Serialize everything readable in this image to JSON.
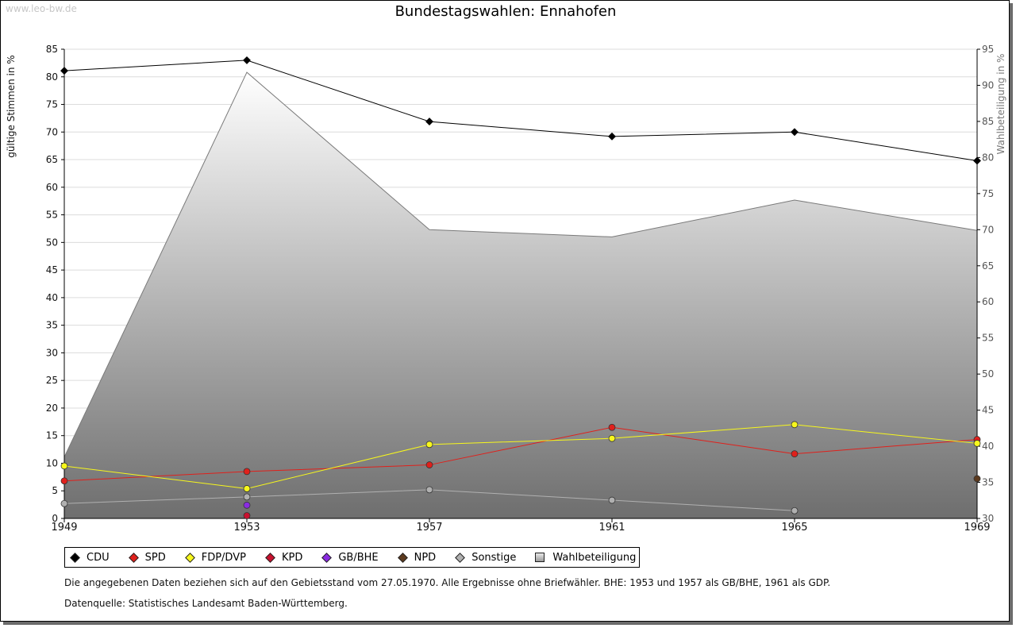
{
  "watermark": "www.leo-bw.de",
  "notes": {
    "data_basis": "Die angegebenen Daten beziehen sich auf den Gebietsstand vom 27.05.1970. Alle Ergebnisse ohne Briefwähler. BHE: 1953 und 1957 als GB/BHE, 1961 als GDP.",
    "source": "Datenquelle: Statistisches Landesamt Baden-Württemberg."
  },
  "chart_data": {
    "type": "line",
    "title": "Bundestagswahlen: Ennahofen",
    "xlabel": "",
    "ylabel": "gültige Stimmen in %",
    "y2label": "Wahlbeteiligung in %",
    "categories": [
      "1949",
      "1953",
      "1957",
      "1961",
      "1965",
      "1969"
    ],
    "ylim": [
      0,
      85
    ],
    "yticks": [
      0,
      5,
      10,
      15,
      20,
      25,
      30,
      35,
      40,
      45,
      50,
      55,
      60,
      65,
      70,
      75,
      80,
      85
    ],
    "y2lim": [
      30,
      95
    ],
    "y2ticks": [
      30,
      35,
      40,
      45,
      50,
      55,
      60,
      65,
      70,
      75,
      80,
      85,
      90,
      95
    ],
    "grid": true,
    "legend_position": "bottom",
    "series": [
      {
        "name": "CDU",
        "color": "#000000",
        "values": [
          81.1,
          83.0,
          71.9,
          69.2,
          70.0,
          64.8
        ]
      },
      {
        "name": "SPD",
        "color": "#e0201b",
        "values": [
          6.8,
          8.5,
          9.7,
          16.5,
          11.7,
          14.3
        ]
      },
      {
        "name": "FDP/DVP",
        "color": "#f7f71c",
        "values": [
          9.5,
          5.4,
          13.4,
          14.5,
          17.0,
          13.6
        ]
      },
      {
        "name": "KPD",
        "color": "#c8102e",
        "values": [
          null,
          0.5,
          null,
          null,
          null,
          null
        ]
      },
      {
        "name": "GB/BHE",
        "color": "#8a2be2",
        "values": [
          null,
          2.4,
          null,
          null,
          null,
          null
        ]
      },
      {
        "name": "NPD",
        "color": "#5c3a1e",
        "values": [
          null,
          null,
          null,
          null,
          null,
          7.2
        ]
      },
      {
        "name": "Sonstige",
        "color": "#b0b0b0",
        "values": [
          2.7,
          3.9,
          5.2,
          3.3,
          1.4,
          null
        ]
      }
    ],
    "turnout": {
      "name": "Wahlbeteiligung",
      "color": "#7a7a7a",
      "values": [
        38.5,
        91.8,
        70.0,
        69.0,
        74.1,
        69.9
      ]
    }
  }
}
